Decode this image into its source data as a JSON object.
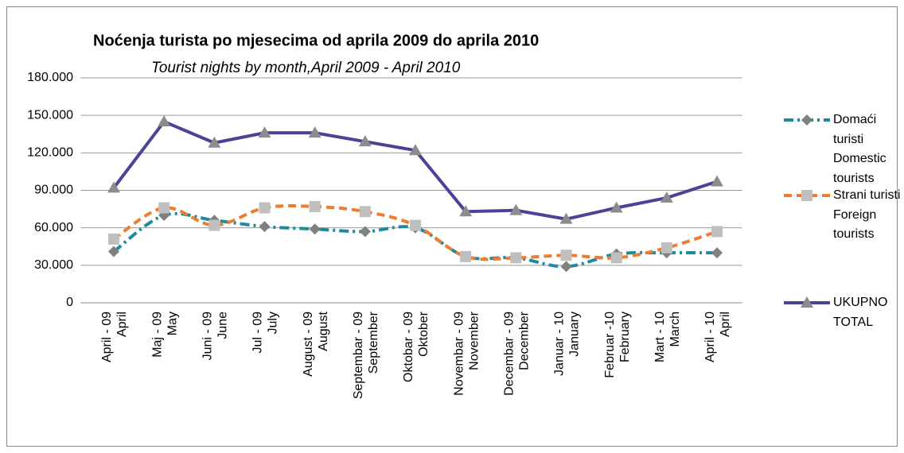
{
  "chart_data": {
    "type": "line",
    "title": "Noćenja turista po mjesecima od aprila 2009 do aprila 2010",
    "subtitle": "Tourist nights by month,April 2009 - April 2010",
    "categories": [
      [
        "April - 09",
        "April"
      ],
      [
        "Maj - 09",
        "May"
      ],
      [
        "Juni - 09",
        "June"
      ],
      [
        "Jul - 09",
        "July"
      ],
      [
        "August - 09",
        "August"
      ],
      [
        "Septembar - 09",
        "September"
      ],
      [
        "Oktobar - 09",
        "Oktober"
      ],
      [
        "Novembar - 09",
        "November"
      ],
      [
        "Decembar - 09",
        "December"
      ],
      [
        "Januar - 10",
        "January"
      ],
      [
        "Februar -10",
        "February"
      ],
      [
        "Mart - 10",
        "March"
      ],
      [
        "April - 10",
        "April"
      ]
    ],
    "series": [
      {
        "name": "Domaći turisti Domestic tourists",
        "color": "#1f8a9c",
        "dash": "12 5 3 5",
        "marker": "diamond",
        "marker_color": "#808080",
        "smooth": true,
        "values": [
          41000,
          70000,
          66000,
          61000,
          59000,
          57000,
          60000,
          37000,
          36000,
          29000,
          39000,
          40000,
          40000
        ]
      },
      {
        "name": "Strani turisti Foreign tourists",
        "color": "#ed7d31",
        "dash": "10 6",
        "marker": "square",
        "marker_color": "#bfbfbf",
        "smooth": true,
        "values": [
          51000,
          76000,
          62000,
          76000,
          77000,
          73000,
          62000,
          37000,
          36000,
          38000,
          36000,
          44000,
          57000
        ]
      },
      {
        "name": "UKUPNO TOTAL",
        "color": "#4a4497",
        "dash": "",
        "marker": "triangle",
        "marker_color": "#8c8c8c",
        "smooth": false,
        "values": [
          92000,
          145000,
          128000,
          136000,
          136000,
          129000,
          122000,
          73000,
          74000,
          67000,
          76000,
          84000,
          97000
        ]
      }
    ],
    "ylim": [
      0,
      180000
    ],
    "yticks": [
      0,
      {
        "value": 30000,
        "label": "30.000"
      },
      {
        "value": 60000,
        "label": "60.000"
      },
      {
        "value": 90000,
        "label": "90.000"
      },
      {
        "value": 120000,
        "label": "120.000"
      },
      {
        "value": 150000,
        "label": "150.000"
      },
      {
        "value": 180000,
        "label": "180.000"
      }
    ],
    "grid": true,
    "legend": "right"
  }
}
